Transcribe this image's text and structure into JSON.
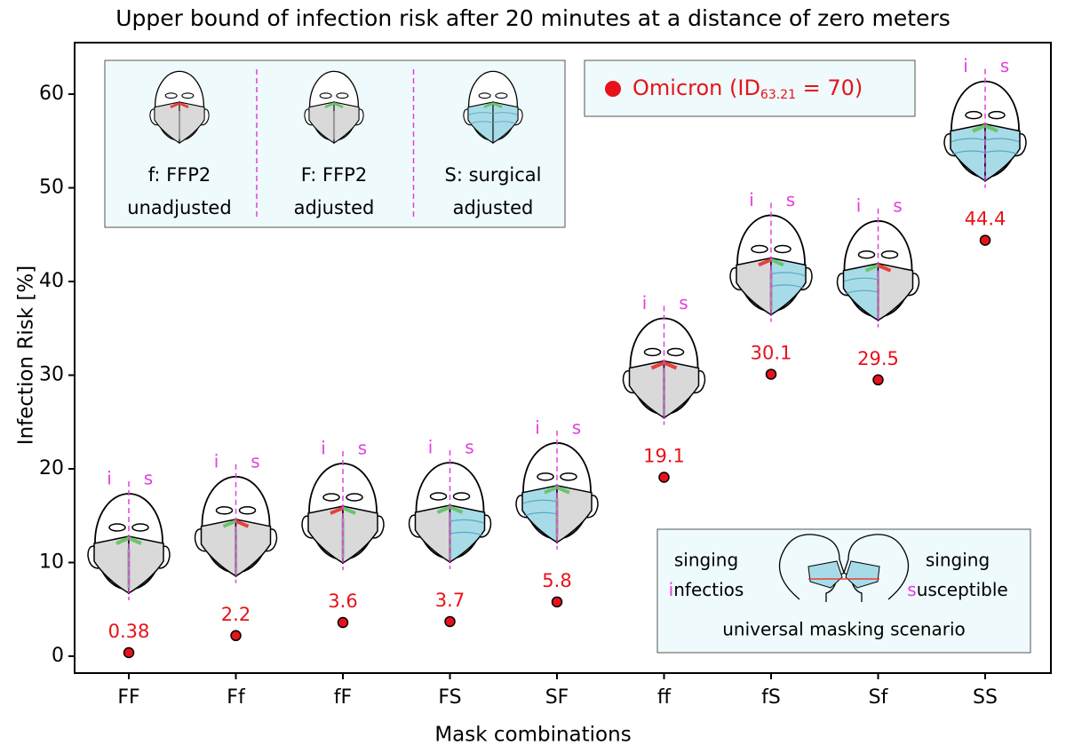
{
  "chart_data": {
    "type": "scatter",
    "title": "Upper bound of infection risk after 20 minutes at a distance of zero meters",
    "x_label": "Mask combinations",
    "y_label": "Infection Risk  [%]",
    "categories": [
      "FF",
      "Ff",
      "fF",
      "FS",
      "SF",
      "ff",
      "fS",
      "Sf",
      "SS"
    ],
    "series": [
      {
        "name": "Omicron",
        "color": "#e8121a",
        "values": [
          0.38,
          2.2,
          3.6,
          3.7,
          5.8,
          19.1,
          30.1,
          29.5,
          44.4
        ]
      }
    ],
    "legend_parts": [
      "Omicron (ID",
      "63.21",
      " = 70)"
    ],
    "ylim": [
      -1.8,
      65.5
    ],
    "yticks": [
      0,
      10,
      20,
      30,
      40,
      50,
      60
    ],
    "face_labels": [
      "i",
      "s"
    ],
    "mask_legend": [
      [
        "f: FFP2",
        "unadjusted"
      ],
      [
        "F: FFP2",
        "adjusted"
      ],
      [
        "S: surgical",
        "adjusted"
      ]
    ],
    "scenario": {
      "left": [
        "singing",
        "i",
        "nfectios"
      ],
      "right": [
        "singing",
        "s",
        "usceptible"
      ],
      "caption": "universal masking scenario"
    }
  }
}
